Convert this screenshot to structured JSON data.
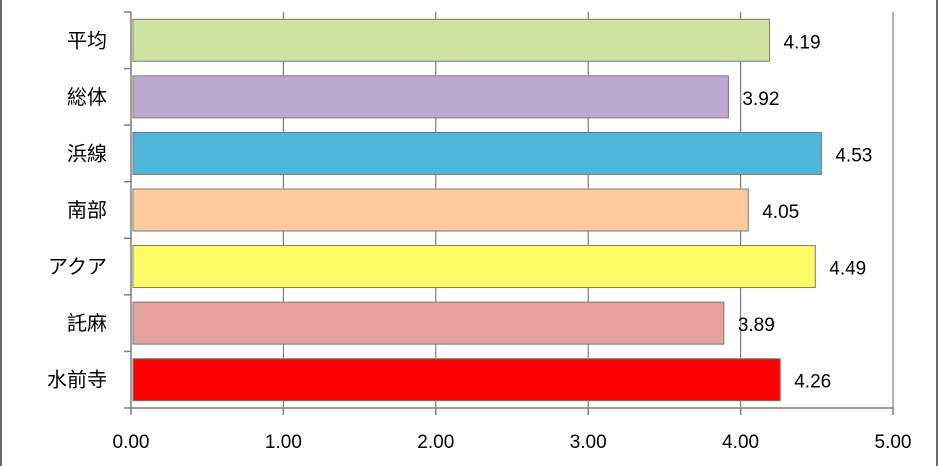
{
  "chart_data": {
    "type": "bar",
    "orientation": "horizontal",
    "categories": [
      "平均",
      "総体",
      "浜線",
      "南部",
      "アクア",
      "託麻",
      "水前寺"
    ],
    "values": [
      4.19,
      3.92,
      4.53,
      4.05,
      4.49,
      3.89,
      4.26
    ],
    "value_labels": [
      "4.19",
      "3.92",
      "4.53",
      "4.05",
      "4.49",
      "3.89",
      "4.26"
    ],
    "colors": [
      "#d0e2a0",
      "#bba9d2",
      "#4eb6d6",
      "#fdcb9b",
      "#fdfb66",
      "#e4a19d",
      "#fe0000"
    ],
    "xlim": [
      0,
      5
    ],
    "x_ticks": [
      "0.00",
      "1.00",
      "2.00",
      "3.00",
      "4.00",
      "5.00"
    ],
    "grid": "vertical",
    "legend": "none"
  }
}
